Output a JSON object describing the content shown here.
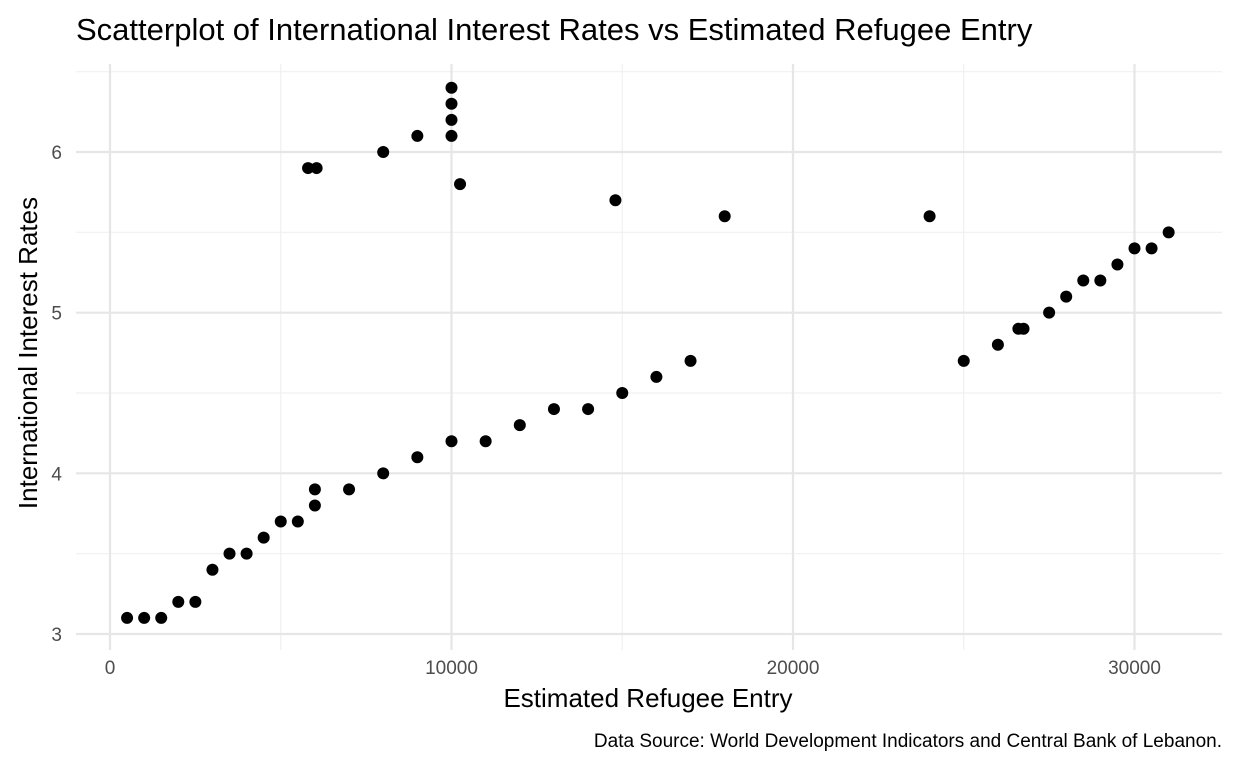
{
  "chart_data": {
    "type": "scatter",
    "title": "Scatterplot of International Interest Rates vs Estimated Refugee Entry",
    "xlabel": "Estimated Refugee Entry",
    "ylabel": "International Interest Rates",
    "caption": "Data Source: World Development Indicators and Central Bank of Lebanon.",
    "xlim": [
      -1000,
      32500
    ],
    "ylim": [
      2.96,
      6.5
    ],
    "x_ticks": [
      0,
      10000,
      20000,
      30000
    ],
    "x_tick_labels": [
      "0",
      "10000",
      "20000",
      "30000"
    ],
    "y_ticks": [
      3,
      4,
      5,
      6
    ],
    "y_tick_labels": [
      "3",
      "4",
      "5",
      "6"
    ],
    "grid": true,
    "legend": "none",
    "point_color": "#000000",
    "points": [
      {
        "x": 500,
        "y": 3.1
      },
      {
        "x": 1000,
        "y": 3.1
      },
      {
        "x": 1500,
        "y": 3.1
      },
      {
        "x": 2000,
        "y": 3.2
      },
      {
        "x": 2500,
        "y": 3.2
      },
      {
        "x": 3000,
        "y": 3.4
      },
      {
        "x": 3500,
        "y": 3.5
      },
      {
        "x": 4000,
        "y": 3.5
      },
      {
        "x": 4500,
        "y": 3.6
      },
      {
        "x": 5000,
        "y": 3.7
      },
      {
        "x": 5500,
        "y": 3.7
      },
      {
        "x": 6000,
        "y": 3.8
      },
      {
        "x": 6000,
        "y": 3.9
      },
      {
        "x": 7000,
        "y": 3.9
      },
      {
        "x": 8000,
        "y": 4.0
      },
      {
        "x": 9000,
        "y": 4.1
      },
      {
        "x": 10000,
        "y": 4.2
      },
      {
        "x": 11000,
        "y": 4.2
      },
      {
        "x": 12000,
        "y": 4.3
      },
      {
        "x": 13000,
        "y": 4.4
      },
      {
        "x": 14000,
        "y": 4.4
      },
      {
        "x": 15000,
        "y": 4.5
      },
      {
        "x": 16000,
        "y": 4.6
      },
      {
        "x": 17000,
        "y": 4.7
      },
      {
        "x": 5800,
        "y": 5.9
      },
      {
        "x": 6050,
        "y": 5.9
      },
      {
        "x": 8000,
        "y": 6.0
      },
      {
        "x": 9000,
        "y": 6.1
      },
      {
        "x": 10000,
        "y": 6.1
      },
      {
        "x": 10000,
        "y": 6.2
      },
      {
        "x": 10000,
        "y": 6.3
      },
      {
        "x": 10000,
        "y": 6.4
      },
      {
        "x": 10250,
        "y": 5.8
      },
      {
        "x": 14800,
        "y": 5.7
      },
      {
        "x": 18000,
        "y": 5.6
      },
      {
        "x": 24000,
        "y": 5.6
      },
      {
        "x": 25000,
        "y": 4.7
      },
      {
        "x": 26000,
        "y": 4.8
      },
      {
        "x": 26600,
        "y": 4.9
      },
      {
        "x": 26750,
        "y": 4.9
      },
      {
        "x": 27500,
        "y": 5.0
      },
      {
        "x": 28000,
        "y": 5.1
      },
      {
        "x": 28500,
        "y": 5.2
      },
      {
        "x": 29000,
        "y": 5.2
      },
      {
        "x": 29500,
        "y": 5.3
      },
      {
        "x": 30000,
        "y": 5.4
      },
      {
        "x": 30500,
        "y": 5.4
      },
      {
        "x": 31000,
        "y": 5.5
      }
    ]
  }
}
